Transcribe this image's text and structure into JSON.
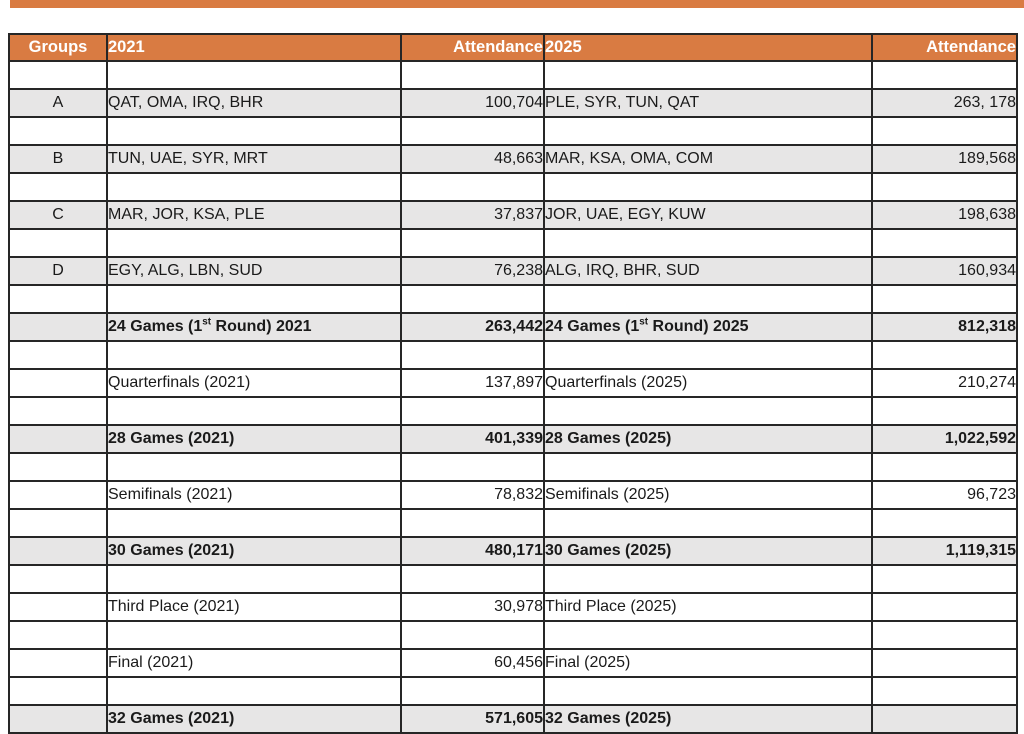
{
  "accent_bar": {
    "color": "#d97b42"
  },
  "table": {
    "header_bg": "#d97b42",
    "shaded_row_bg": "#e7e6e6",
    "border_color": "#262626",
    "headers": [
      {
        "label": "Groups"
      },
      {
        "label": "2021"
      },
      {
        "label": "Attendance"
      },
      {
        "label": "2025"
      },
      {
        "label": "Attendance"
      }
    ],
    "rows": [
      {
        "type": "spacer"
      },
      {
        "type": "data",
        "shaded": true,
        "bold": false,
        "group": "A",
        "label_2021": "QAT, OMA, IRQ, BHR",
        "att_2021": "100,704",
        "label_2025": "PLE, SYR, TUN, QAT",
        "att_2025": "263, 178"
      },
      {
        "type": "spacer"
      },
      {
        "type": "data",
        "shaded": true,
        "bold": false,
        "group": "B",
        "label_2021": "TUN, UAE, SYR, MRT",
        "att_2021": "48,663",
        "label_2025": "MAR, KSA, OMA, COM",
        "att_2025": "189,568"
      },
      {
        "type": "spacer"
      },
      {
        "type": "data",
        "shaded": true,
        "bold": false,
        "group": "C",
        "label_2021": "MAR, JOR, KSA, PLE",
        "att_2021": "37,837",
        "label_2025": "JOR, UAE, EGY, KUW",
        "att_2025": "198,638"
      },
      {
        "type": "spacer"
      },
      {
        "type": "data",
        "shaded": true,
        "bold": false,
        "group": "D",
        "label_2021": "EGY, ALG, LBN, SUD",
        "att_2021": "76,238",
        "label_2025": "ALG, IRQ, BHR, SUD",
        "att_2025": "160,934"
      },
      {
        "type": "spacer"
      },
      {
        "type": "data",
        "shaded": true,
        "bold": true,
        "group": "",
        "label_2021": [
          "24 Games (1",
          {
            "sup": "st"
          },
          " Round) 2021"
        ],
        "att_2021": "263,442",
        "label_2025": [
          "24 Games (1",
          {
            "sup": "st"
          },
          " Round) 2025"
        ],
        "att_2025": "812,318"
      },
      {
        "type": "spacer"
      },
      {
        "type": "data",
        "shaded": false,
        "bold": false,
        "group": "",
        "label_2021": "Quarterfinals (2021)",
        "att_2021": "137,897",
        "label_2025": "Quarterfinals (2025)",
        "att_2025": "210,274"
      },
      {
        "type": "spacer"
      },
      {
        "type": "data",
        "shaded": true,
        "bold": true,
        "group": "",
        "label_2021": "28 Games (2021)",
        "att_2021": "401,339",
        "label_2025": "28 Games (2025)",
        "att_2025": "1,022,592"
      },
      {
        "type": "spacer"
      },
      {
        "type": "data",
        "shaded": false,
        "bold": false,
        "group": "",
        "label_2021": "Semifinals (2021)",
        "att_2021": "78,832",
        "label_2025": "Semifinals (2025)",
        "att_2025": "96,723"
      },
      {
        "type": "spacer"
      },
      {
        "type": "data",
        "shaded": true,
        "bold": true,
        "group": "",
        "label_2021": "30 Games (2021)",
        "att_2021": "480,171",
        "label_2025": "30 Games (2025)",
        "att_2025": "1,119,315"
      },
      {
        "type": "spacer"
      },
      {
        "type": "data",
        "shaded": false,
        "bold": false,
        "group": "",
        "label_2021": "Third Place (2021)",
        "att_2021": "30,978",
        "label_2025": "Third Place (2025)",
        "att_2025": ""
      },
      {
        "type": "spacer"
      },
      {
        "type": "data",
        "shaded": false,
        "bold": false,
        "group": "",
        "label_2021": "Final (2021)",
        "att_2021": "60,456",
        "label_2025": "Final (2025)",
        "att_2025": ""
      },
      {
        "type": "spacer"
      },
      {
        "type": "data",
        "shaded": true,
        "bold": true,
        "group": "",
        "label_2021": "32 Games (2021)",
        "att_2021": "571,605",
        "label_2025": "32 Games (2025)",
        "att_2025": ""
      }
    ]
  }
}
